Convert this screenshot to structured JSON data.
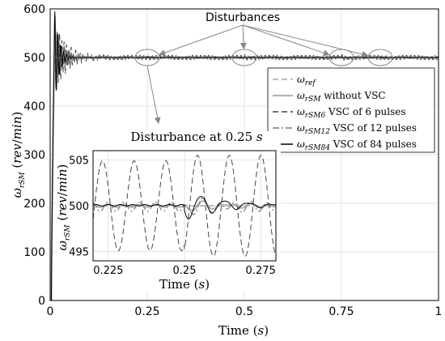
{
  "chart_data": [
    {
      "type": "line",
      "xlabel": "Time (s)",
      "ylabel": "ω_rSM (rev/min)",
      "xlim": [
        0,
        1
      ],
      "ylim": [
        0,
        600
      ],
      "xticks": [
        "0",
        "0.25",
        "0.5",
        "0.75",
        "1"
      ],
      "yticks": [
        "0",
        "100",
        "200",
        "300",
        "400",
        "500",
        "600"
      ],
      "grid": true,
      "legend_position": "right",
      "annotation": "Disturbances",
      "disturbance_times": [
        0.25,
        0.5,
        0.75,
        0.85
      ],
      "reference_speed": 500,
      "startup_peak": 595,
      "series": [
        {
          "name": "ω_ref",
          "label_main": "ω",
          "label_sub": "ref",
          "label_tail": "",
          "style": "dashed",
          "color": "#aaaaaa"
        },
        {
          "name": "ω_rSM without VSC",
          "label_main": "ω",
          "label_sub": "rSM",
          "label_tail": " without VSC",
          "style": "solid",
          "color": "#b4b4b4"
        },
        {
          "name": "ω_rSM6 VSC of 6 pulses",
          "label_main": "ω",
          "label_sub": "rSM6",
          "label_tail": " VSC of 6 pulses",
          "style": "dashed",
          "color": "#444444"
        },
        {
          "name": "ω_rSM12 VSC of 12 pulses",
          "label_main": "ω",
          "label_sub": "rSM12",
          "label_tail": " VSC of 12 pulses",
          "style": "dashdot",
          "color": "#7a7a7a"
        },
        {
          "name": "ω_rSM84 VSC of 84 pulses",
          "label_main": "ω",
          "label_sub": "rSM84",
          "label_tail": " VSC of 84 pulses",
          "style": "solid",
          "color": "#000000"
        }
      ]
    },
    {
      "type": "line",
      "title": "Disturbance at 0.25 s",
      "xlabel": "Time (s)",
      "ylabel": "ω_rSM (rev/min)",
      "xlim": [
        0.22,
        0.28
      ],
      "ylim": [
        494,
        506
      ],
      "xticks": [
        "0.225",
        "0.25",
        "0.275"
      ],
      "yticks": [
        "495",
        "500",
        "505"
      ],
      "grid": true
    }
  ]
}
